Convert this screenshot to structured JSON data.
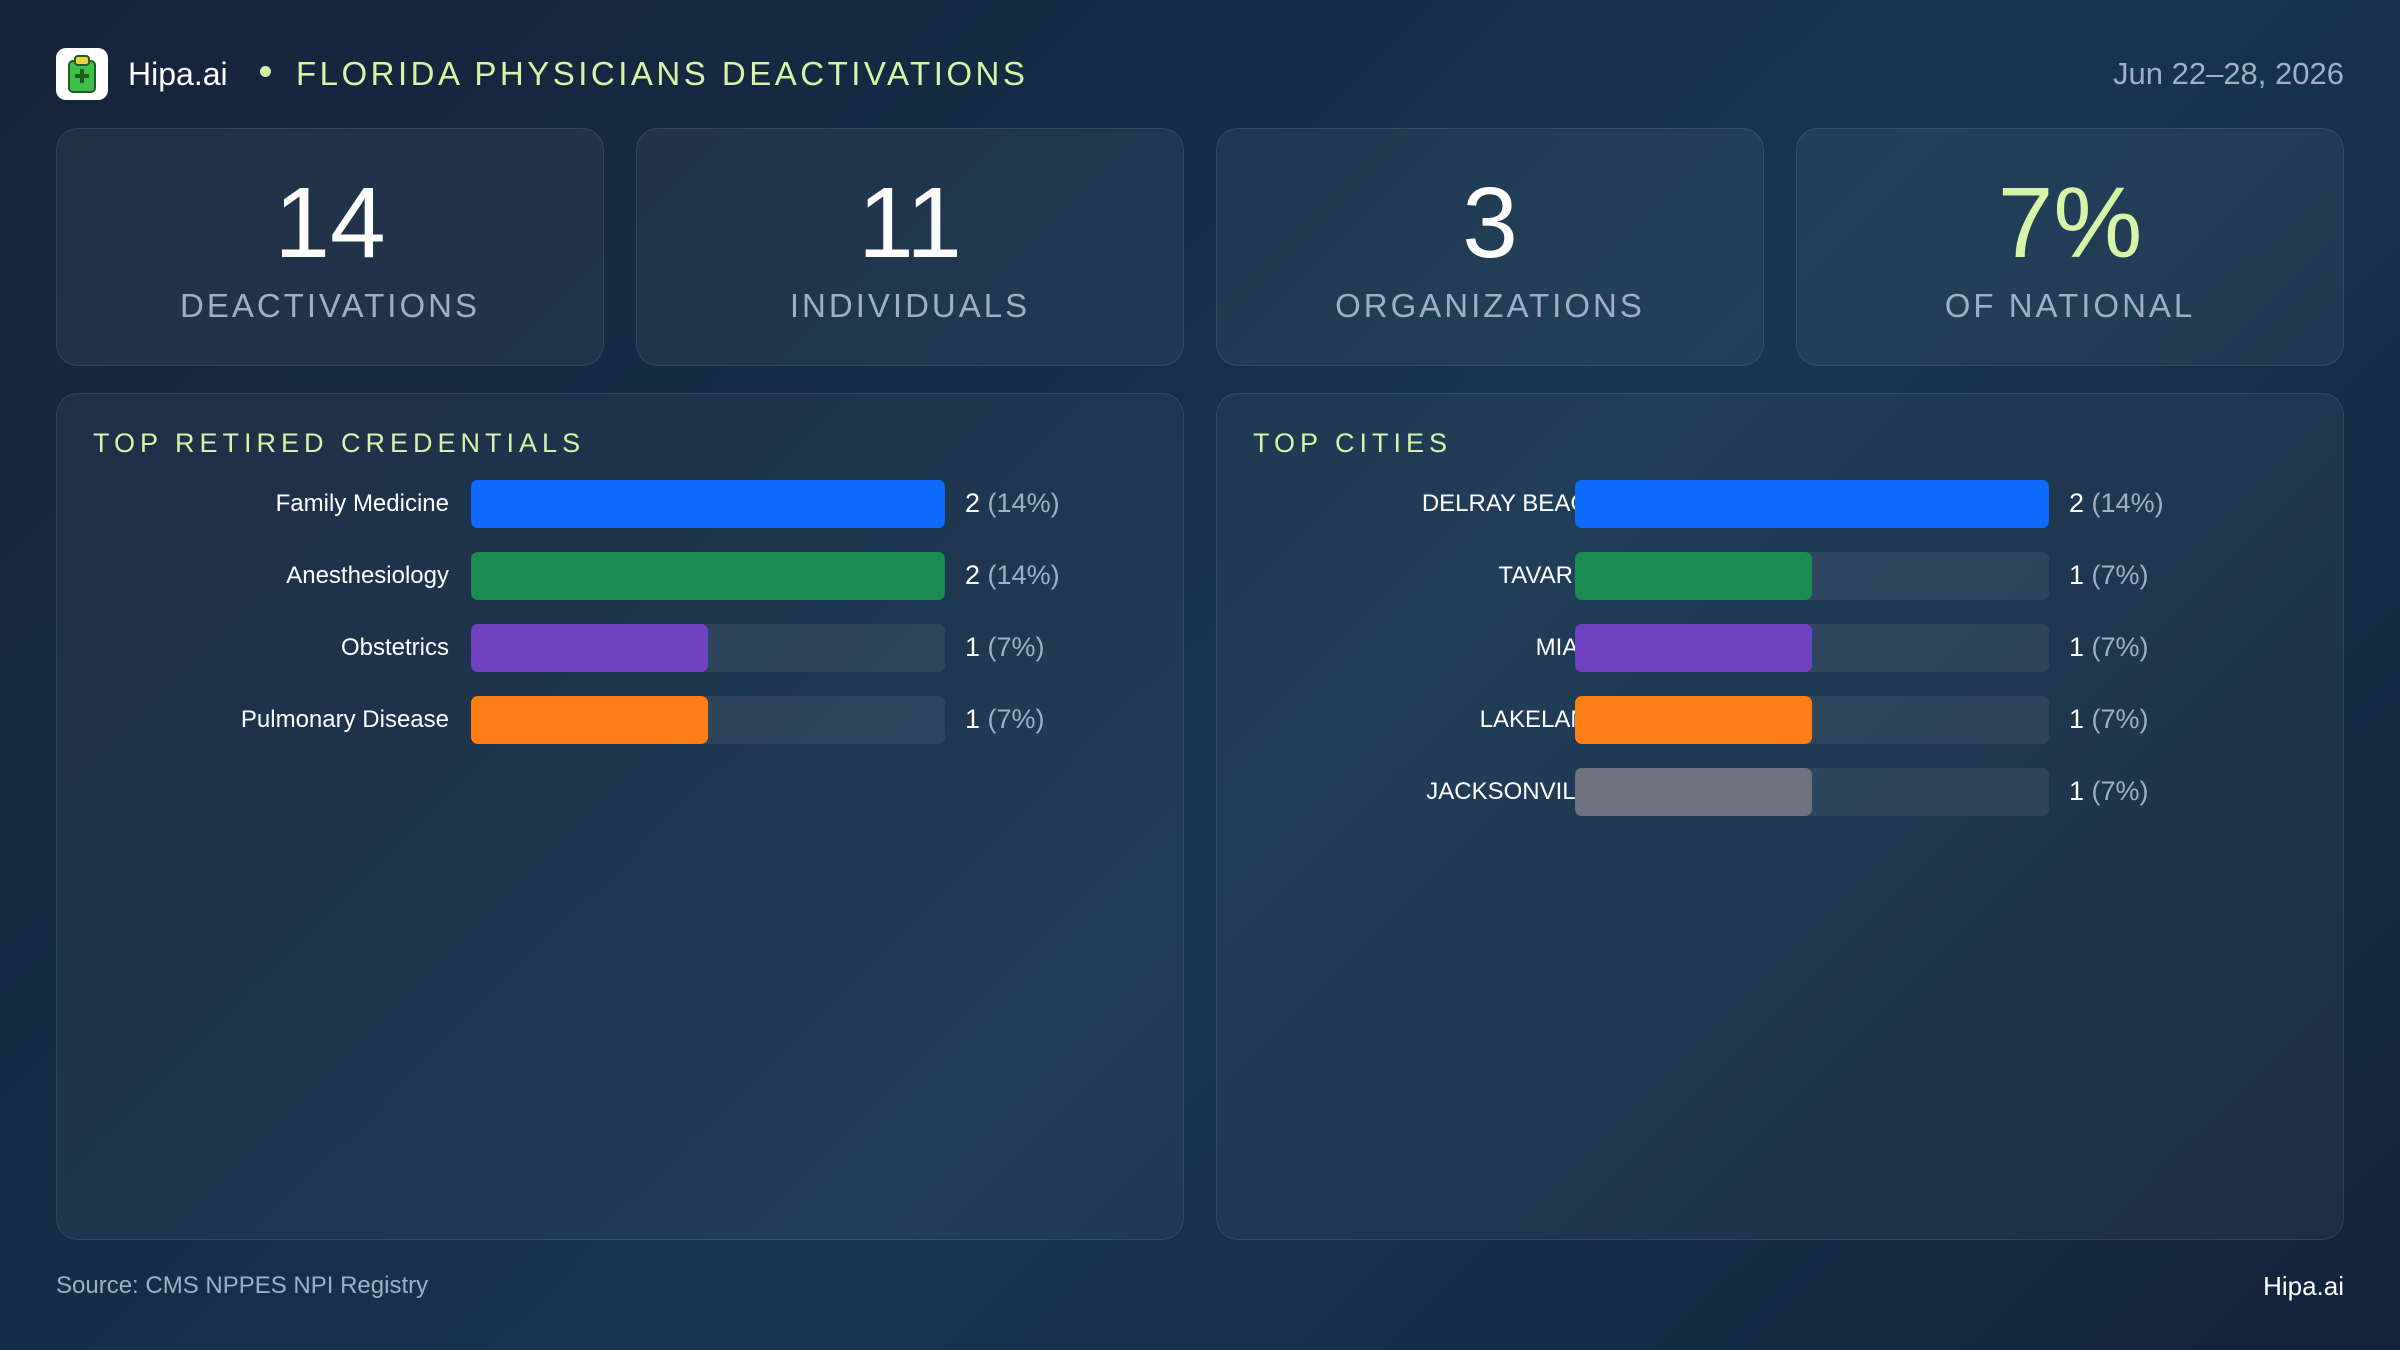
{
  "header": {
    "brand": "Hipa.ai",
    "title": "FLORIDA PHYSICIANS DEACTIVATIONS",
    "date": "Jun 22–28, 2026",
    "logo_icon": "clipboard-logo-icon"
  },
  "kpis": [
    {
      "value": "14",
      "label": "DEACTIVATIONS"
    },
    {
      "value": "11",
      "label": "INDIVIDUALS"
    },
    {
      "value": "3",
      "label": "ORGANIZATIONS"
    },
    {
      "value": "7%",
      "label": "OF NATIONAL"
    }
  ],
  "colors": {
    "accent": "#d6f5a6",
    "blue": "#0f6bff",
    "green": "#1a8c52",
    "purple": "#6e42c1",
    "orange": "#fd7e14",
    "gray": "#6c737e"
  },
  "chart_data": [
    {
      "type": "bar",
      "orientation": "horizontal",
      "title": "TOP RETIRED CREDENTIALS",
      "categories": [
        "Family Medicine",
        "Anesthesiology",
        "Obstetrics",
        "Pulmonary Disease"
      ],
      "values": [
        2,
        2,
        1,
        1
      ],
      "value_labels": [
        "2",
        "2",
        "1",
        "1"
      ],
      "percent_labels": [
        "(14%)",
        "(14%)",
        "(7%)",
        "(7%)"
      ],
      "colors": [
        "#0f6bff",
        "#1a8c52",
        "#6e42c1",
        "#fd7e14"
      ],
      "xlim": [
        0,
        2
      ]
    },
    {
      "type": "bar",
      "orientation": "horizontal",
      "title": "TOP CITIES",
      "categories": [
        "DELRAY BEACH",
        "TAVARES",
        "MIAMI",
        "LAKELAND",
        "JACKSONVILLE"
      ],
      "values": [
        2,
        1,
        1,
        1,
        1
      ],
      "value_labels": [
        "2",
        "1",
        "1",
        "1",
        "1"
      ],
      "percent_labels": [
        "(14%)",
        "(7%)",
        "(7%)",
        "(7%)",
        "(7%)"
      ],
      "colors": [
        "#0f6bff",
        "#1a8c52",
        "#6e42c1",
        "#fd7e14",
        "#6c737e"
      ],
      "xlim": [
        0,
        2
      ]
    }
  ],
  "footer": {
    "source": "Source: CMS NPPES NPI Registry",
    "brand": "Hipa.ai"
  }
}
